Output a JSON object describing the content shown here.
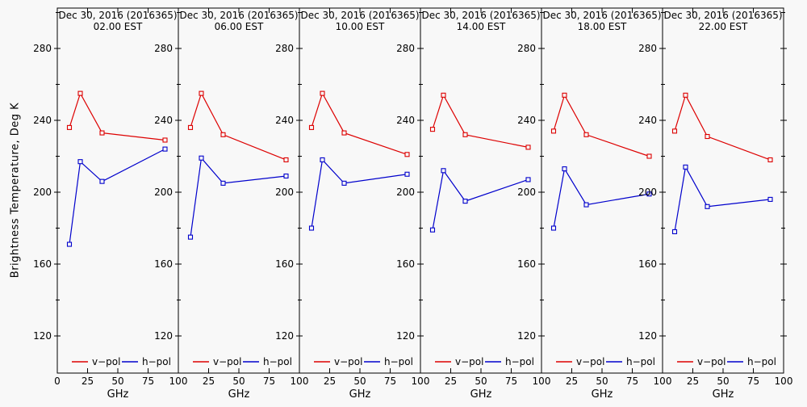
{
  "page": {
    "background": "#f8f8f8"
  },
  "chart_data": {
    "type": "line",
    "title": "Dec 30, 2016 (2016365)",
    "ylabel": "Brightness Temperature, Deg K",
    "xlabel": "GHz",
    "x": [
      10,
      19,
      37,
      89
    ],
    "xlim": [
      0,
      100
    ],
    "xticks": [
      0,
      25,
      50,
      75,
      100
    ],
    "xticks_top": [
      25,
      50,
      75
    ],
    "ylim": [
      100,
      302
    ],
    "yticks_major": [
      120,
      160,
      200,
      240,
      280
    ],
    "yticks_minor": [
      140,
      180,
      220,
      260,
      300
    ],
    "grid": false,
    "legend_position": "bottom-inside",
    "legend": [
      {
        "name": "v−pol",
        "color": "#dd0000"
      },
      {
        "name": "h−pol",
        "color": "#0000cc"
      }
    ],
    "panels": [
      {
        "title_line1": "Dec 30, 2016 (2016365)",
        "title_line2": "02.00 EST",
        "series": [
          {
            "name": "v-pol",
            "values": [
              236,
              255,
              233,
              229
            ]
          },
          {
            "name": "h-pol",
            "values": [
              171,
              217,
              206,
              224
            ]
          }
        ]
      },
      {
        "title_line1": "Dec 30, 2016 (2016365)",
        "title_line2": "06.00 EST",
        "series": [
          {
            "name": "v-pol",
            "values": [
              236,
              255,
              232,
              218
            ]
          },
          {
            "name": "h-pol",
            "values": [
              175,
              219,
              205,
              209
            ]
          }
        ]
      },
      {
        "title_line1": "Dec 30, 2016 (2016365)",
        "title_line2": "10.00 EST",
        "series": [
          {
            "name": "v-pol",
            "values": [
              236,
              255,
              233,
              221
            ]
          },
          {
            "name": "h-pol",
            "values": [
              180,
              218,
              205,
              210
            ]
          }
        ]
      },
      {
        "title_line1": "Dec 30, 2016 (2016365)",
        "title_line2": "14.00 EST",
        "series": [
          {
            "name": "v-pol",
            "values": [
              235,
              254,
              232,
              225
            ]
          },
          {
            "name": "h-pol",
            "values": [
              179,
              212,
              195,
              207
            ]
          }
        ]
      },
      {
        "title_line1": "Dec 30, 2016 (2016365)",
        "title_line2": "18.00 EST",
        "series": [
          {
            "name": "v-pol",
            "values": [
              234,
              254,
              232,
              220
            ]
          },
          {
            "name": "h-pol",
            "values": [
              180,
              213,
              193,
              199
            ]
          }
        ]
      },
      {
        "title_line1": "Dec 30, 2016 (2016365)",
        "title_line2": "22.00 EST",
        "series": [
          {
            "name": "v-pol",
            "values": [
              234,
              254,
              231,
              218
            ]
          },
          {
            "name": "h-pol",
            "values": [
              178,
              214,
              192,
              196
            ]
          }
        ]
      }
    ]
  }
}
